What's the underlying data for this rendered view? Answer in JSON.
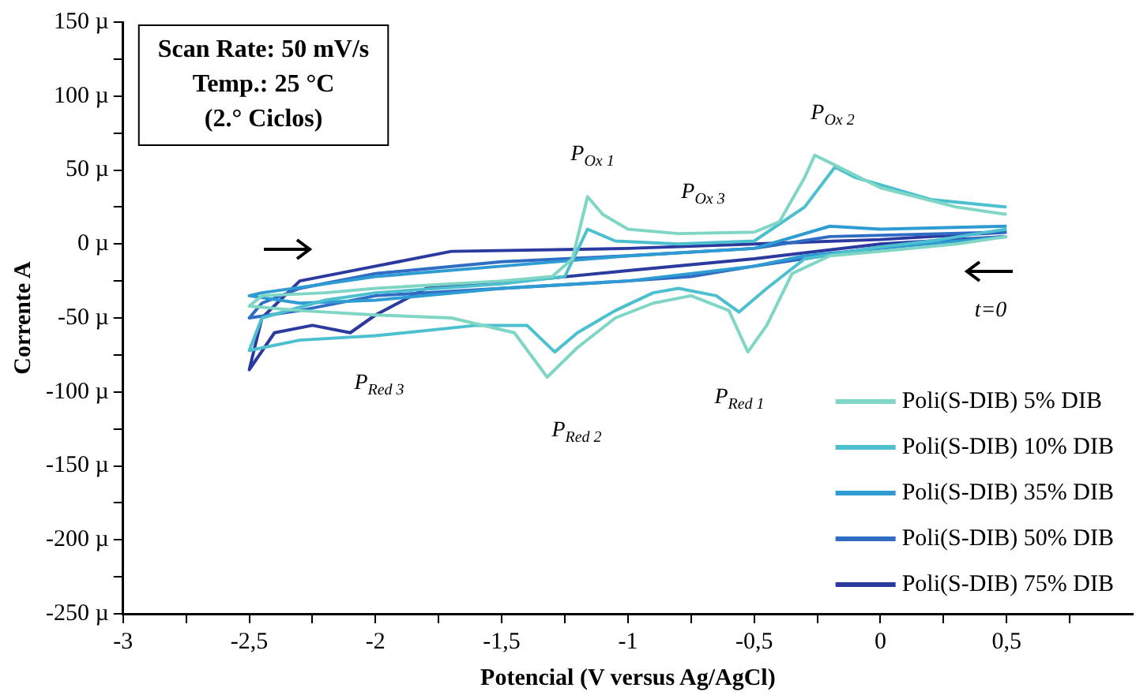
{
  "chart_data": {
    "type": "line",
    "xlabel": "Potencial (V versus Ag/AgCl)",
    "ylabel": "Corrente A",
    "xlim": [
      -3,
      1
    ],
    "xticks": [
      -3,
      {
        "value": -2.75,
        "label": null
      },
      {
        "value": -2.5,
        "label": "-2,5"
      },
      {
        "value": -2.25,
        "label": null
      },
      -2,
      {
        "value": -1.75,
        "label": null
      },
      {
        "value": -1.5,
        "label": "-1,5"
      },
      {
        "value": -1.25,
        "label": null
      },
      -1,
      {
        "value": -0.75,
        "label": null
      },
      {
        "value": -0.5,
        "label": "-0,5"
      },
      {
        "value": -0.25,
        "label": null
      },
      0,
      {
        "value": 0.25,
        "label": null
      },
      {
        "value": 0.5,
        "label": "0,5"
      },
      {
        "value": 0.75,
        "label": null
      }
    ],
    "ylim": [
      -250,
      150
    ],
    "yticks": [
      {
        "value": 150,
        "label": "150 µ"
      },
      {
        "value": 125,
        "label": null
      },
      {
        "value": 100,
        "label": "100 µ"
      },
      {
        "value": 75,
        "label": null
      },
      {
        "value": 50,
        "label": "50 µ"
      },
      {
        "value": 25,
        "label": null
      },
      {
        "value": 0,
        "label": "0 µ"
      },
      {
        "value": -25,
        "label": null
      },
      {
        "value": -50,
        "label": "-50 µ"
      },
      {
        "value": -75,
        "label": null
      },
      {
        "value": -100,
        "label": "-100 µ"
      },
      {
        "value": -125,
        "label": null
      },
      {
        "value": -150,
        "label": "-150 µ"
      },
      {
        "value": -175,
        "label": null
      },
      {
        "value": -200,
        "label": "-200 µ"
      },
      {
        "value": -225,
        "label": null
      },
      {
        "value": -250,
        "label": "-250 µ"
      }
    ],
    "grid": false,
    "legend": "bottom right",
    "marker": "none",
    "line_style": "solid",
    "series": [
      {
        "name": "Poli(S-DIB) 5% DIB",
        "color": "#7fd6c4",
        "x": [
          0.5,
          0.3,
          0,
          -0.2,
          -0.35,
          -0.45,
          -0.525,
          -0.6,
          -0.75,
          -0.9,
          -1.05,
          -1.2,
          -1.32,
          -1.45,
          -1.7,
          -2.0,
          -2.3,
          -2.5,
          -2.45,
          -2.2,
          -2.0,
          -1.5,
          -1.3,
          -1.22,
          -1.16,
          -1.1,
          -1.0,
          -0.8,
          -0.5,
          -0.4,
          -0.3,
          -0.26,
          -0.2,
          0,
          0.3,
          0.5
        ],
        "values": [
          5,
          0,
          -5,
          -8,
          -20,
          -55,
          -73,
          -45,
          -35,
          -40,
          -50,
          -70,
          -90,
          -60,
          -50,
          -48,
          -45,
          -42,
          -35,
          -33,
          -30,
          -25,
          -22,
          -10,
          32,
          20,
          10,
          7,
          8,
          15,
          45,
          60,
          55,
          38,
          25,
          20
        ]
      },
      {
        "name": "Poli(S-DIB) 10% DIB",
        "color": "#4cc0cf",
        "x": [
          0.5,
          0.2,
          0,
          -0.3,
          -0.45,
          -0.56,
          -0.65,
          -0.8,
          -0.9,
          -1.05,
          -1.2,
          -1.29,
          -1.4,
          -1.6,
          -2.0,
          -2.3,
          -2.5,
          -2.45,
          -2.2,
          -2.0,
          -1.5,
          -1.25,
          -1.16,
          -1.05,
          -0.8,
          -0.5,
          -0.3,
          -0.18,
          -0.1,
          0.2,
          0.5
        ],
        "values": [
          10,
          2,
          -2,
          -10,
          -30,
          -46,
          -35,
          -30,
          -33,
          -45,
          -60,
          -73,
          -55,
          -55,
          -62,
          -65,
          -72,
          -50,
          -38,
          -33,
          -27,
          -22,
          10,
          2,
          0,
          2,
          25,
          52,
          45,
          30,
          25
        ]
      },
      {
        "name": "Poli(S-DIB) 35% DIB",
        "color": "#2f9bd3",
        "x": [
          0.5,
          0,
          -0.3,
          -0.5,
          -1,
          -1.5,
          -2,
          -2.3,
          -2.5,
          -2.45,
          -2.2,
          -2,
          -1.5,
          -1,
          -0.5,
          -0.2,
          0,
          0.5
        ],
        "values": [
          5,
          -3,
          -8,
          -15,
          -25,
          -30,
          -38,
          -40,
          -35,
          -33,
          -27,
          -22,
          -15,
          -8,
          -3,
          12,
          10,
          12
        ]
      },
      {
        "name": "Poli(S-DIB) 50% DIB",
        "color": "#2f6cc4",
        "x": [
          0.5,
          0,
          -0.3,
          -0.5,
          -0.75,
          -1,
          -1.5,
          -2,
          -2.3,
          -2.5,
          -2.45,
          -2.3,
          -2,
          -1.5,
          -1,
          -0.5,
          -0.2,
          0.5
        ],
        "values": [
          5,
          -2,
          -10,
          -15,
          -22,
          -25,
          -30,
          -35,
          -45,
          -50,
          -40,
          -30,
          -20,
          -12,
          -8,
          -3,
          5,
          8
        ]
      },
      {
        "name": "Poli(S-DIB) 75% DIB",
        "color": "#2b3a9e",
        "x": [
          0.5,
          0,
          -0.5,
          -1,
          -1.3,
          -1.8,
          -2.0,
          -2.1,
          -2.25,
          -2.4,
          -2.5,
          -2.45,
          -2.3,
          -2,
          -1.7,
          -1,
          -0.5,
          0,
          0.5
        ],
        "values": [
          5,
          0,
          -10,
          -18,
          -23,
          -30,
          -48,
          -60,
          -55,
          -60,
          -85,
          -50,
          -25,
          -15,
          -5,
          -3,
          0,
          3,
          8
        ]
      }
    ],
    "annotations": [
      "Scan Rate: 50 mV/s",
      "Temp.: 25 °C",
      "(2.° Ciclos)",
      "P$_{Ox 1}$",
      "P$_{Ox 3}$",
      "P$_{Ox 2}$",
      "P$_{Red 3}$",
      "P$_{Red 2}$",
      "P$_{Red 1}$",
      "t=0"
    ]
  }
}
